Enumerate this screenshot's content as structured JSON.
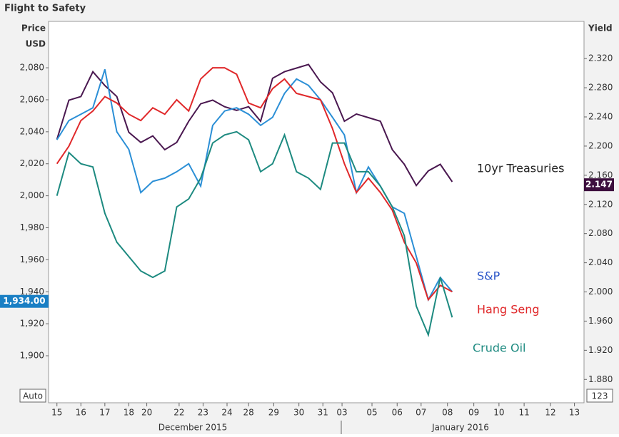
{
  "chart_data": {
    "type": "line",
    "title": "Flight to Safety",
    "y_axis_label": [
      "Price",
      "USD"
    ],
    "y2_axis_label": "Yield",
    "x_period_labels": [
      "December 2015",
      "January 2016"
    ],
    "buttons": [
      "Auto",
      "123"
    ],
    "x": [
      0,
      0.5,
      1,
      1.5,
      2,
      2.5,
      3,
      3.5,
      4,
      4.5,
      5,
      5.5,
      6,
      6.5,
      7,
      7.5,
      8,
      8.5,
      9,
      9.5,
      10,
      10.5,
      11,
      11.5,
      12,
      12.5,
      13,
      13.5,
      14,
      14.5,
      15,
      15.5,
      16,
      16.5
    ],
    "xlim": [
      -0.35,
      22.0
    ],
    "xticks": [
      {
        "value": 0,
        "label": "15"
      },
      {
        "value": 1,
        "label": "16"
      },
      {
        "value": 2,
        "label": "17"
      },
      {
        "value": 3,
        "label": "18"
      },
      {
        "value": 3.75,
        "label": "20"
      },
      {
        "value": 5.1,
        "label": "22"
      },
      {
        "value": 6.1,
        "label": "23"
      },
      {
        "value": 7.1,
        "label": "24"
      },
      {
        "value": 8,
        "label": "28"
      },
      {
        "value": 9.05,
        "label": "29"
      },
      {
        "value": 10.1,
        "label": "30"
      },
      {
        "value": 11.1,
        "label": "31"
      },
      {
        "value": 11.9,
        "label": "03"
      },
      {
        "value": 13.15,
        "label": "05"
      },
      {
        "value": 14.2,
        "label": "06"
      },
      {
        "value": 15.2,
        "label": "07"
      },
      {
        "value": 16.3,
        "label": "08"
      },
      {
        "value": 17.4,
        "label": "09"
      },
      {
        "value": 18.45,
        "label": "10"
      },
      {
        "value": 19.5,
        "label": "11"
      },
      {
        "value": 20.6,
        "label": "12"
      },
      {
        "value": 21.6,
        "label": "13"
      }
    ],
    "ylim": [
      1870.6,
      2109
    ],
    "yticks": [
      {
        "value": 1900,
        "label": "1,900"
      },
      {
        "value": 1920,
        "label": "1,920"
      },
      {
        "value": 1940,
        "label": "1,940"
      },
      {
        "value": 1960,
        "label": "1,960"
      },
      {
        "value": 1980,
        "label": "1,980"
      },
      {
        "value": 2000,
        "label": "2,000"
      },
      {
        "value": 2020,
        "label": "2,020"
      },
      {
        "value": 2040,
        "label": "2,040"
      },
      {
        "value": 2060,
        "label": "2,060"
      },
      {
        "value": 2080,
        "label": "2,080"
      }
    ],
    "y2lim": [
      1.848,
      2.371
    ],
    "y2ticks": [
      {
        "value": 1.88,
        "label": "1.880"
      },
      {
        "value": 1.92,
        "label": "1.920"
      },
      {
        "value": 1.96,
        "label": "1.960"
      },
      {
        "value": 2.0,
        "label": "2.000"
      },
      {
        "value": 2.04,
        "label": "2.040"
      },
      {
        "value": 2.08,
        "label": "2.080"
      },
      {
        "value": 2.12,
        "label": "2.120"
      },
      {
        "value": 2.16,
        "label": "2.160"
      },
      {
        "value": 2.2,
        "label": "2.200"
      },
      {
        "value": 2.24,
        "label": "2.240"
      },
      {
        "value": 2.28,
        "label": "2.280"
      },
      {
        "value": 2.32,
        "label": "2.320"
      }
    ],
    "left_tag": {
      "value": 1934,
      "label": "1,934.00"
    },
    "right_tag": {
      "value": 2.147,
      "label": "2.147"
    },
    "series": [
      {
        "name": "10yr Treasuries",
        "color": "#4a1850",
        "axis": "y2",
        "values": [
          2.209,
          2.263,
          2.268,
          2.302,
          2.283,
          2.268,
          2.219,
          2.205,
          2.214,
          2.195,
          2.205,
          2.234,
          2.258,
          2.263,
          2.254,
          2.249,
          2.254,
          2.234,
          2.293,
          2.302,
          2.307,
          2.312,
          2.288,
          2.273,
          2.234,
          2.244,
          2.239,
          2.234,
          2.195,
          2.175,
          2.146,
          2.166,
          2.175,
          2.151
        ]
      },
      {
        "name": "S&P",
        "color": "#2b8fd6",
        "values": [
          2035,
          2047,
          2051,
          2055,
          2079,
          2040,
          2029,
          2002,
          2009,
          2011,
          2015,
          2020,
          2006,
          2044,
          2053,
          2055,
          2051,
          2044,
          2049,
          2064,
          2073,
          2069,
          2060,
          2049,
          2038,
          2002,
          2018,
          2006,
          1993,
          1989,
          1962,
          1935,
          1949,
          1940
        ]
      },
      {
        "name": "Hang Seng",
        "color": "#e0282a",
        "values": [
          2020,
          2031,
          2047,
          2053,
          2062,
          2058,
          2051,
          2047,
          2055,
          2051,
          2060,
          2053,
          2073,
          2080,
          2080,
          2076,
          2058,
          2055,
          2067,
          2073,
          2064,
          2062,
          2060,
          2042,
          2020,
          2002,
          2011,
          2002,
          1991,
          1971,
          1958,
          1935,
          1944,
          1940
        ]
      },
      {
        "name": "Crude Oil",
        "color": "#1d8a80",
        "values": [
          2000,
          2027,
          2020,
          2018,
          1989,
          1971,
          1962,
          1953,
          1949,
          1953,
          1993,
          1998,
          2011,
          2033,
          2038,
          2040,
          2035,
          2015,
          2020,
          2038,
          2015,
          2011,
          2004,
          2033,
          2033,
          2015,
          2015,
          2006,
          1993,
          1975,
          1931,
          1913,
          1949,
          1924
        ]
      }
    ]
  }
}
